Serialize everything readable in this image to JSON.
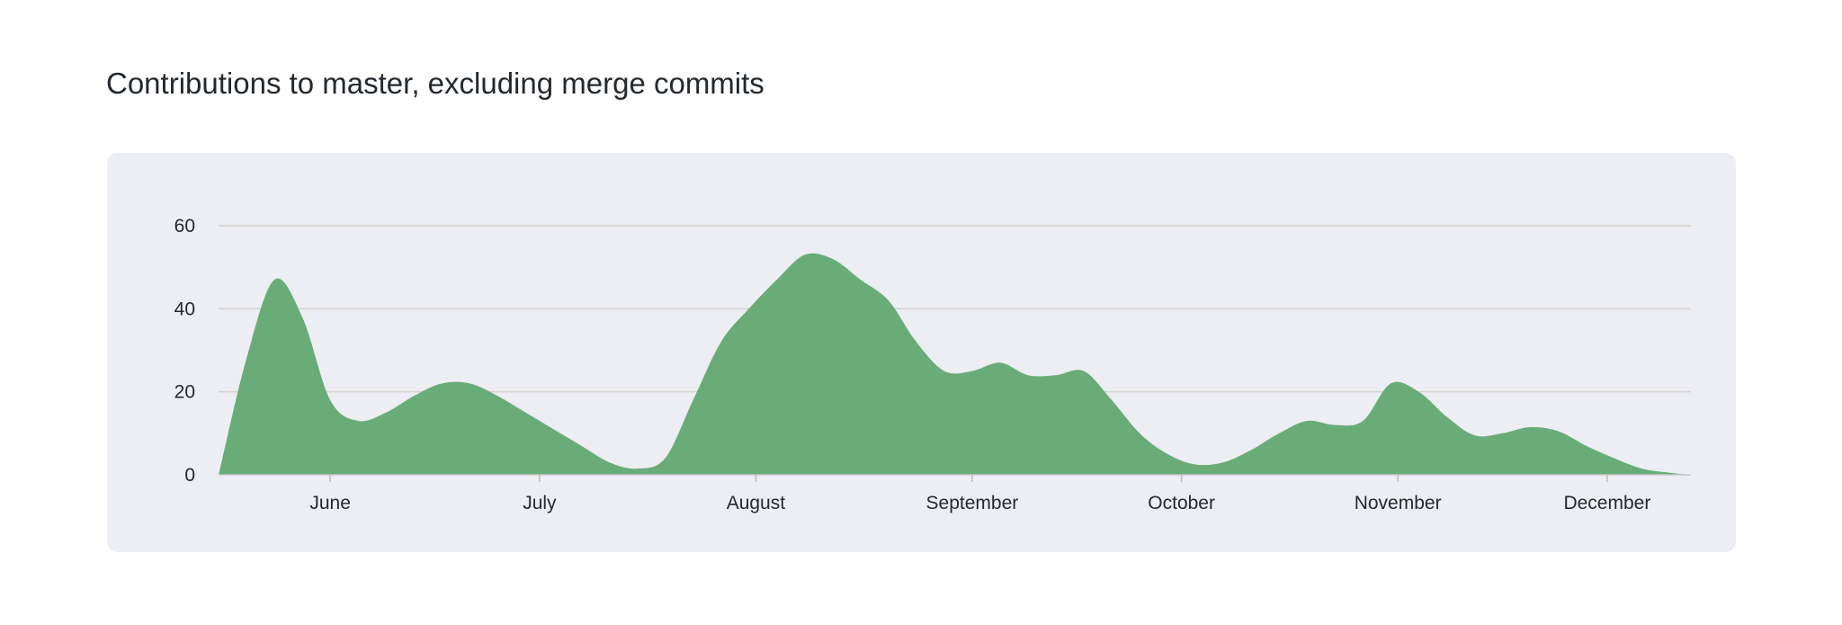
{
  "heading": "Contributions to master, excluding merge commits",
  "colors": {
    "area": "#6aac78",
    "panel": "#eceef3",
    "grid": "#d6d0cc",
    "text": "#24292e"
  },
  "chart_data": {
    "type": "area",
    "title": "Contributions to master, excluding merge commits",
    "xlabel": "",
    "ylabel": "",
    "ylim": [
      0,
      60
    ],
    "yticks": [
      0,
      20,
      40,
      60
    ],
    "grid": true,
    "xticks": [
      {
        "label": "June",
        "x": "2023-06-01"
      },
      {
        "label": "July",
        "x": "2023-07-01"
      },
      {
        "label": "August",
        "x": "2023-08-01"
      },
      {
        "label": "September",
        "x": "2023-09-01"
      },
      {
        "label": "October",
        "x": "2023-10-01"
      },
      {
        "label": "November",
        "x": "2023-11-01"
      },
      {
        "label": "December",
        "x": "2023-12-01"
      }
    ],
    "xlim": [
      "2023-05-16",
      "2023-12-13"
    ],
    "series": [
      {
        "x": [
          "2023-05-16",
          "2023-05-20",
          "2023-05-24",
          "2023-05-28",
          "2023-06-01",
          "2023-06-05",
          "2023-06-09",
          "2023-06-13",
          "2023-06-17",
          "2023-06-21",
          "2023-06-25",
          "2023-06-29",
          "2023-07-03",
          "2023-07-07",
          "2023-07-11",
          "2023-07-15",
          "2023-07-19",
          "2023-07-23",
          "2023-07-27",
          "2023-07-31",
          "2023-08-04",
          "2023-08-08",
          "2023-08-12",
          "2023-08-16",
          "2023-08-20",
          "2023-08-24",
          "2023-08-28",
          "2023-09-01",
          "2023-09-05",
          "2023-09-09",
          "2023-09-13",
          "2023-09-17",
          "2023-09-21",
          "2023-09-25",
          "2023-09-29",
          "2023-10-03",
          "2023-10-07",
          "2023-10-11",
          "2023-10-15",
          "2023-10-19",
          "2023-10-23",
          "2023-10-27",
          "2023-10-31",
          "2023-11-04",
          "2023-11-08",
          "2023-11-12",
          "2023-11-16",
          "2023-11-20",
          "2023-11-24",
          "2023-11-28",
          "2023-12-02",
          "2023-12-06",
          "2023-12-10",
          "2023-12-13"
        ],
        "values": [
          0,
          28,
          47,
          38,
          18,
          13,
          15,
          19,
          22,
          22,
          19,
          15,
          11,
          7,
          3,
          1.5,
          4,
          18,
          32,
          40,
          47,
          53,
          52,
          47,
          42,
          32,
          25,
          25,
          27,
          24,
          24,
          25,
          18,
          10,
          5,
          2.5,
          3,
          6,
          10,
          13,
          12,
          13,
          22,
          20,
          14,
          9.5,
          10,
          11.5,
          10.5,
          7,
          4,
          1.5,
          0.5,
          0
        ]
      }
    ]
  }
}
